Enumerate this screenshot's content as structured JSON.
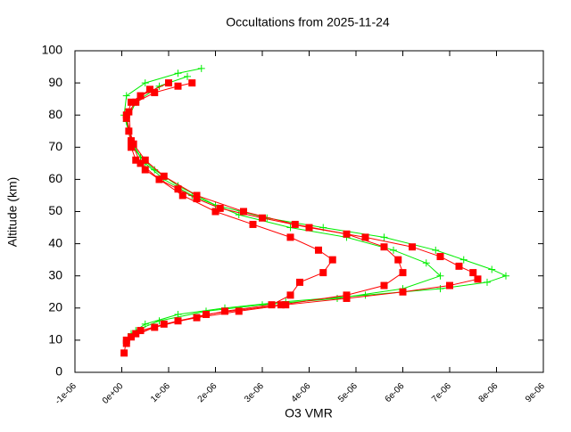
{
  "chart_data": {
    "type": "scatter",
    "title": "Occultations from 2025-11-24",
    "xlabel": "O3 VMR",
    "ylabel": "Altitude (km)",
    "xlim": [
      -1e-06,
      9e-06
    ],
    "xticks": [
      {
        "value": -1e-06,
        "label": "-1e-06"
      },
      {
        "value": 0,
        "label": "0e+00"
      },
      {
        "value": 1e-06,
        "label": "1e-06"
      },
      {
        "value": 2e-06,
        "label": "2e-06"
      },
      {
        "value": 3e-06,
        "label": "3e-06"
      },
      {
        "value": 4e-06,
        "label": "4e-06"
      },
      {
        "value": 5e-06,
        "label": "5e-06"
      },
      {
        "value": 6e-06,
        "label": "6e-06"
      },
      {
        "value": 7e-06,
        "label": "7e-06"
      },
      {
        "value": 8e-06,
        "label": "8e-06"
      },
      {
        "value": 9e-06,
        "label": "9e-06"
      }
    ],
    "ylim": [
      0,
      100
    ],
    "yticks": [
      0,
      10,
      20,
      30,
      40,
      50,
      60,
      70,
      80,
      90,
      100
    ],
    "series": [
      {
        "color": "#00ee00",
        "marker": "cross",
        "x": [
          2e-07,
          5e-07,
          1.2e-06,
          2.2e-06,
          3.5e-06,
          5.2e-06,
          6.8e-06,
          7.8e-06,
          8.2e-06,
          7.9e-06,
          7.3e-06,
          6.7e-06,
          5.6e-06,
          4.3e-06,
          3.1e-06,
          2e-06,
          1.2e-06,
          7e-07,
          4e-07,
          2e-07,
          5e-08,
          1e-07,
          5e-07,
          1.2e-06,
          1.7e-06
        ],
        "values": [
          12,
          15,
          18,
          20,
          22,
          24,
          26,
          28,
          30,
          32,
          35,
          38,
          42,
          45,
          48,
          52,
          58,
          63,
          67,
          72,
          80,
          86,
          90,
          93,
          94.5
        ]
      },
      {
        "color": "#00ee00",
        "marker": "cross",
        "x": [
          3e-07,
          8e-07,
          1.8e-06,
          3e-06,
          4.6e-06,
          6e-06,
          6.8e-06,
          6.5e-06,
          5.8e-06,
          4.8e-06,
          3.6e-06,
          2.5e-06,
          1.5e-06,
          9e-07,
          5e-07,
          2.5e-07,
          1e-07,
          3e-07,
          8e-07,
          1.4e-06
        ],
        "values": [
          13,
          16,
          19,
          21,
          23,
          26,
          30,
          34,
          38,
          42,
          45,
          49,
          55,
          60,
          65,
          70,
          78,
          84,
          89,
          92
        ]
      },
      {
        "color": "#ff0000",
        "marker": "square",
        "x": [
          5e-08,
          1e-07,
          3e-07,
          9e-07,
          1.6e-06,
          2.5e-06,
          3.5e-06,
          4.8e-06,
          6e-06,
          7e-06,
          7.6e-06,
          7.5e-06,
          7.2e-06,
          6.8e-06,
          6.2e-06,
          5.2e-06,
          4e-06,
          3e-06,
          2.1e-06,
          1.6e-06,
          1.2e-06,
          8e-07,
          5e-07,
          3e-07,
          2e-07,
          1.5e-07,
          1e-07,
          3e-07,
          7e-07,
          1.2e-06,
          1.5e-06
        ],
        "values": [
          6,
          10,
          12,
          15,
          17,
          19,
          21,
          23,
          25,
          27,
          29,
          31,
          33,
          36,
          39,
          42,
          45,
          48,
          51,
          54,
          57,
          60,
          63,
          66,
          70,
          75,
          80,
          84,
          87,
          89,
          90
        ]
      },
      {
        "color": "#ff0000",
        "marker": "square",
        "x": [
          1e-07,
          4e-07,
          1.2e-06,
          2.2e-06,
          3.2e-06,
          3.6e-06,
          3.8e-06,
          4.3e-06,
          4.5e-06,
          4.2e-06,
          3.6e-06,
          2.8e-06,
          2e-06,
          1.3e-06,
          8e-07,
          4e-07,
          2e-07,
          1.5e-07,
          4e-07,
          1e-06
        ],
        "values": [
          9,
          13,
          16,
          19,
          21,
          24,
          28,
          31,
          35,
          38,
          42,
          46,
          50,
          55,
          60,
          65,
          72,
          81,
          86,
          90
        ]
      },
      {
        "color": "#ff0000",
        "marker": "square",
        "x": [
          2e-07,
          7e-07,
          1.8e-06,
          3.4e-06,
          4.8e-06,
          5.6e-06,
          6e-06,
          5.9e-06,
          5.6e-06,
          4.8e-06,
          3.7e-06,
          2.6e-06,
          1.6e-06,
          9e-07,
          5e-07,
          2.5e-07,
          1e-07,
          2e-07,
          6e-07
        ],
        "values": [
          11,
          14,
          18,
          21,
          24,
          27,
          31,
          35,
          39,
          43,
          46,
          50,
          55,
          61,
          66,
          71,
          79,
          84,
          88
        ]
      }
    ]
  }
}
